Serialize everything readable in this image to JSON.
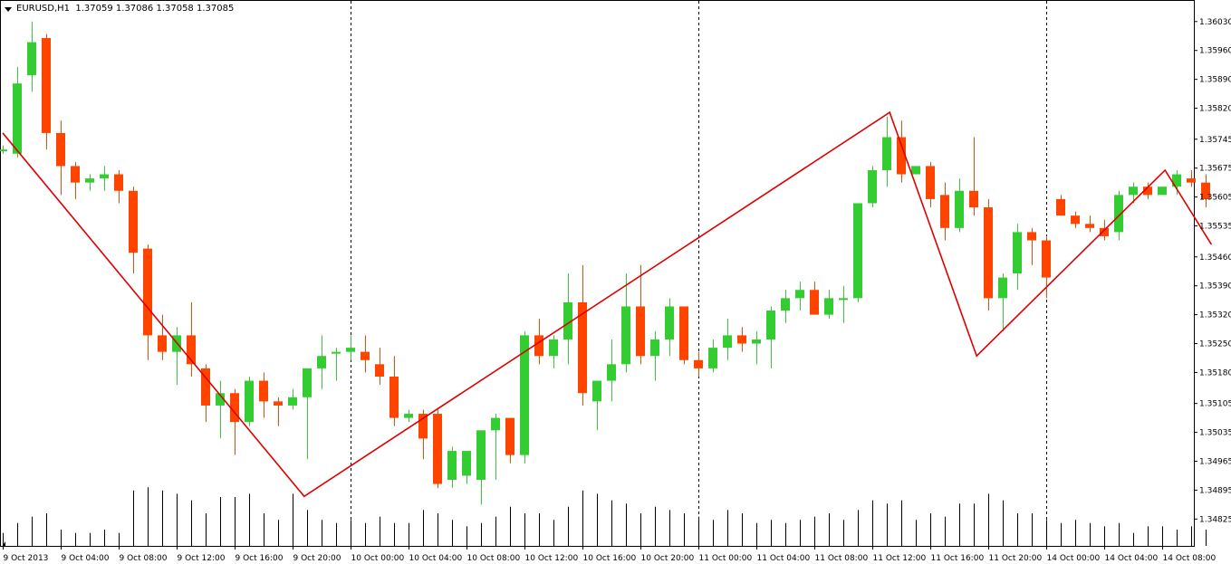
{
  "header": {
    "symbol": "EURUSD,H1",
    "ohlc": "1.37059 1.37086 1.37058 1.37085"
  },
  "colors": {
    "bull": "#33cc33",
    "bear": "#ff4400",
    "zigzag": "#dd0000",
    "volume": "#000000",
    "separator": "#000000"
  },
  "chart_data": {
    "type": "candlestick",
    "title": "EURUSD,H1",
    "ylim": [
      1.3476,
      1.3608
    ],
    "y_ticks": [
      "1.36030",
      "1.35960",
      "1.35890",
      "1.35820",
      "1.35745",
      "1.35675",
      "1.35605",
      "1.35535",
      "1.35460",
      "1.35390",
      "1.35320",
      "1.35250",
      "1.35180",
      "1.35105",
      "1.35035",
      "1.34965",
      "1.34895",
      "1.34825"
    ],
    "x_ticks": [
      "9 Oct 2013",
      "9 Oct 04:00",
      "9 Oct 08:00",
      "9 Oct 12:00",
      "9 Oct 16:00",
      "9 Oct 20:00",
      "10 Oct 00:00",
      "10 Oct 04:00",
      "10 Oct 08:00",
      "10 Oct 12:00",
      "10 Oct 16:00",
      "10 Oct 20:00",
      "11 Oct 00:00",
      "11 Oct 04:00",
      "11 Oct 08:00",
      "11 Oct 12:00",
      "11 Oct 16:00",
      "11 Oct 20:00",
      "14 Oct 00:00",
      "14 Oct 04:00",
      "14 Oct 08:00"
    ],
    "grid": false,
    "candles": [
      [
        1.3572,
        1.3573,
        1.3571,
        1.3572
      ],
      [
        1.3571,
        1.3592,
        1.357,
        1.3588
      ],
      [
        1.359,
        1.3603,
        1.3586,
        1.3598
      ],
      [
        1.3599,
        1.36,
        1.3572,
        1.3576
      ],
      [
        1.3576,
        1.3579,
        1.3561,
        1.3568
      ],
      [
        1.3568,
        1.3569,
        1.356,
        1.3564
      ],
      [
        1.3564,
        1.3566,
        1.3562,
        1.3565
      ],
      [
        1.3565,
        1.3568,
        1.3562,
        1.3566
      ],
      [
        1.3566,
        1.3567,
        1.3559,
        1.3562
      ],
      [
        1.3562,
        1.3563,
        1.3542,
        1.3547
      ],
      [
        1.3548,
        1.3549,
        1.3521,
        1.3527
      ],
      [
        1.3527,
        1.3532,
        1.3521,
        1.3523
      ],
      [
        1.3523,
        1.3529,
        1.3515,
        1.3527
      ],
      [
        1.3527,
        1.3535,
        1.3517,
        1.352
      ],
      [
        1.3519,
        1.352,
        1.3506,
        1.351
      ],
      [
        1.351,
        1.3516,
        1.3502,
        1.3513
      ],
      [
        1.3513,
        1.3514,
        1.3498,
        1.3506
      ],
      [
        1.3506,
        1.3517,
        1.3505,
        1.3516
      ],
      [
        1.3516,
        1.3518,
        1.3507,
        1.3511
      ],
      [
        1.3511,
        1.3512,
        1.3505,
        1.351
      ],
      [
        1.351,
        1.3514,
        1.3509,
        1.3512
      ],
      [
        1.3512,
        1.3519,
        1.3497,
        1.3519
      ],
      [
        1.3519,
        1.3527,
        1.3514,
        1.3522
      ],
      [
        1.3523,
        1.3524,
        1.3516,
        1.3523
      ],
      [
        1.3523,
        1.3527,
        1.3521,
        1.3524
      ],
      [
        1.3523,
        1.3527,
        1.3518,
        1.3521
      ],
      [
        1.352,
        1.3524,
        1.3515,
        1.3517
      ],
      [
        1.3517,
        1.3522,
        1.3505,
        1.3507
      ],
      [
        1.3507,
        1.3509,
        1.3506,
        1.3508
      ],
      [
        1.3508,
        1.3509,
        1.3497,
        1.3502
      ],
      [
        1.3508,
        1.3509,
        1.349,
        1.3491
      ],
      [
        1.3492,
        1.35,
        1.349,
        1.3499
      ],
      [
        1.3493,
        1.3499,
        1.3491,
        1.3499
      ],
      [
        1.3492,
        1.3503,
        1.3486,
        1.3504
      ],
      [
        1.3504,
        1.3508,
        1.3492,
        1.3507
      ],
      [
        1.3507,
        1.3507,
        1.3496,
        1.3498
      ],
      [
        1.3498,
        1.3528,
        1.3496,
        1.3527
      ],
      [
        1.3527,
        1.3531,
        1.352,
        1.3522
      ],
      [
        1.3522,
        1.3527,
        1.3519,
        1.3526
      ],
      [
        1.3526,
        1.3542,
        1.352,
        1.3535
      ],
      [
        1.3535,
        1.3544,
        1.351,
        1.3513
      ],
      [
        1.3511,
        1.3516,
        1.3504,
        1.3516
      ],
      [
        1.3516,
        1.3526,
        1.3511,
        1.352
      ],
      [
        1.352,
        1.3542,
        1.3518,
        1.3534
      ],
      [
        1.3534,
        1.3544,
        1.352,
        1.3522
      ],
      [
        1.3522,
        1.3528,
        1.3516,
        1.3526
      ],
      [
        1.3526,
        1.3536,
        1.3522,
        1.3534
      ],
      [
        1.3534,
        1.3534,
        1.352,
        1.3521
      ],
      [
        1.3521,
        1.3523,
        1.3517,
        1.3519
      ],
      [
        1.3519,
        1.3526,
        1.3518,
        1.3524
      ],
      [
        1.3524,
        1.3531,
        1.3521,
        1.3527
      ],
      [
        1.3527,
        1.3529,
        1.3523,
        1.3525
      ],
      [
        1.3525,
        1.3528,
        1.352,
        1.3526
      ],
      [
        1.3526,
        1.3534,
        1.3519,
        1.3533
      ],
      [
        1.3533,
        1.3538,
        1.353,
        1.3536
      ],
      [
        1.3536,
        1.354,
        1.3533,
        1.3538
      ],
      [
        1.3538,
        1.354,
        1.3532,
        1.3532
      ],
      [
        1.3532,
        1.3538,
        1.3531,
        1.3536
      ],
      [
        1.3536,
        1.3539,
        1.353,
        1.3536
      ],
      [
        1.3536,
        1.3559,
        1.3535,
        1.3559
      ],
      [
        1.3559,
        1.3568,
        1.3558,
        1.3567
      ],
      [
        1.3567,
        1.358,
        1.3563,
        1.3575
      ],
      [
        1.3575,
        1.3579,
        1.3564,
        1.3566
      ],
      [
        1.3566,
        1.3568,
        1.3566,
        1.3568
      ],
      [
        1.3568,
        1.3569,
        1.3558,
        1.356
      ],
      [
        1.3561,
        1.3564,
        1.355,
        1.3553
      ],
      [
        1.3553,
        1.3565,
        1.3552,
        1.3562
      ],
      [
        1.3562,
        1.3575,
        1.3556,
        1.3558
      ],
      [
        1.3558,
        1.356,
        1.3533,
        1.3536
      ],
      [
        1.3536,
        1.3542,
        1.3528,
        1.3541
      ],
      [
        1.3542,
        1.3554,
        1.3538,
        1.3552
      ],
      [
        1.3552,
        1.3553,
        1.3544,
        1.355
      ],
      [
        1.355,
        1.3551,
        1.3536,
        1.3541
      ],
      [
        1.356,
        1.3561,
        1.3556,
        1.3556
      ],
      [
        1.3556,
        1.3557,
        1.3553,
        1.3554
      ],
      [
        1.3554,
        1.3556,
        1.3552,
        1.3553
      ],
      [
        1.3553,
        1.3555,
        1.355,
        1.3551
      ],
      [
        1.3552,
        1.3562,
        1.355,
        1.3561
      ],
      [
        1.3561,
        1.3564,
        1.3559,
        1.3563
      ],
      [
        1.3563,
        1.3564,
        1.356,
        1.3561
      ],
      [
        1.3561,
        1.3563,
        1.3561,
        1.3563
      ],
      [
        1.3563,
        1.3567,
        1.3561,
        1.3566
      ],
      [
        1.3565,
        1.3567,
        1.3563,
        1.3564
      ],
      [
        1.3564,
        1.3566,
        1.3558,
        1.356
      ]
    ],
    "volumes": [
      0.2,
      0.35,
      0.45,
      0.5,
      0.25,
      0.2,
      0.2,
      0.25,
      0.2,
      0.85,
      0.9,
      0.85,
      0.8,
      0.7,
      0.5,
      0.75,
      0.75,
      0.8,
      0.5,
      0.4,
      0.8,
      0.55,
      0.4,
      0.35,
      0.4,
      0.35,
      0.45,
      0.35,
      0.35,
      0.55,
      0.5,
      0.4,
      0.3,
      0.35,
      0.45,
      0.6,
      0.5,
      0.5,
      0.4,
      0.6,
      0.85,
      0.8,
      0.7,
      0.65,
      0.5,
      0.6,
      0.55,
      0.5,
      0.45,
      0.4,
      0.55,
      0.5,
      0.35,
      0.4,
      0.35,
      0.4,
      0.45,
      0.5,
      0.4,
      0.55,
      0.7,
      0.65,
      0.7,
      0.4,
      0.5,
      0.45,
      0.65,
      0.65,
      0.8,
      0.7,
      0.5,
      0.5,
      0.4,
      0.35,
      0.4,
      0.35,
      0.3,
      0.35,
      0.2,
      0.3,
      0.3,
      0.25,
      0.3,
      0.25
    ],
    "zigzag": [
      [
        0,
        1.3576
      ],
      [
        20.8,
        1.3488
      ],
      [
        61.2,
        1.3581
      ],
      [
        67.2,
        1.3522
      ],
      [
        80.2,
        1.3567
      ],
      [
        83.4,
        1.3549
      ]
    ]
  }
}
